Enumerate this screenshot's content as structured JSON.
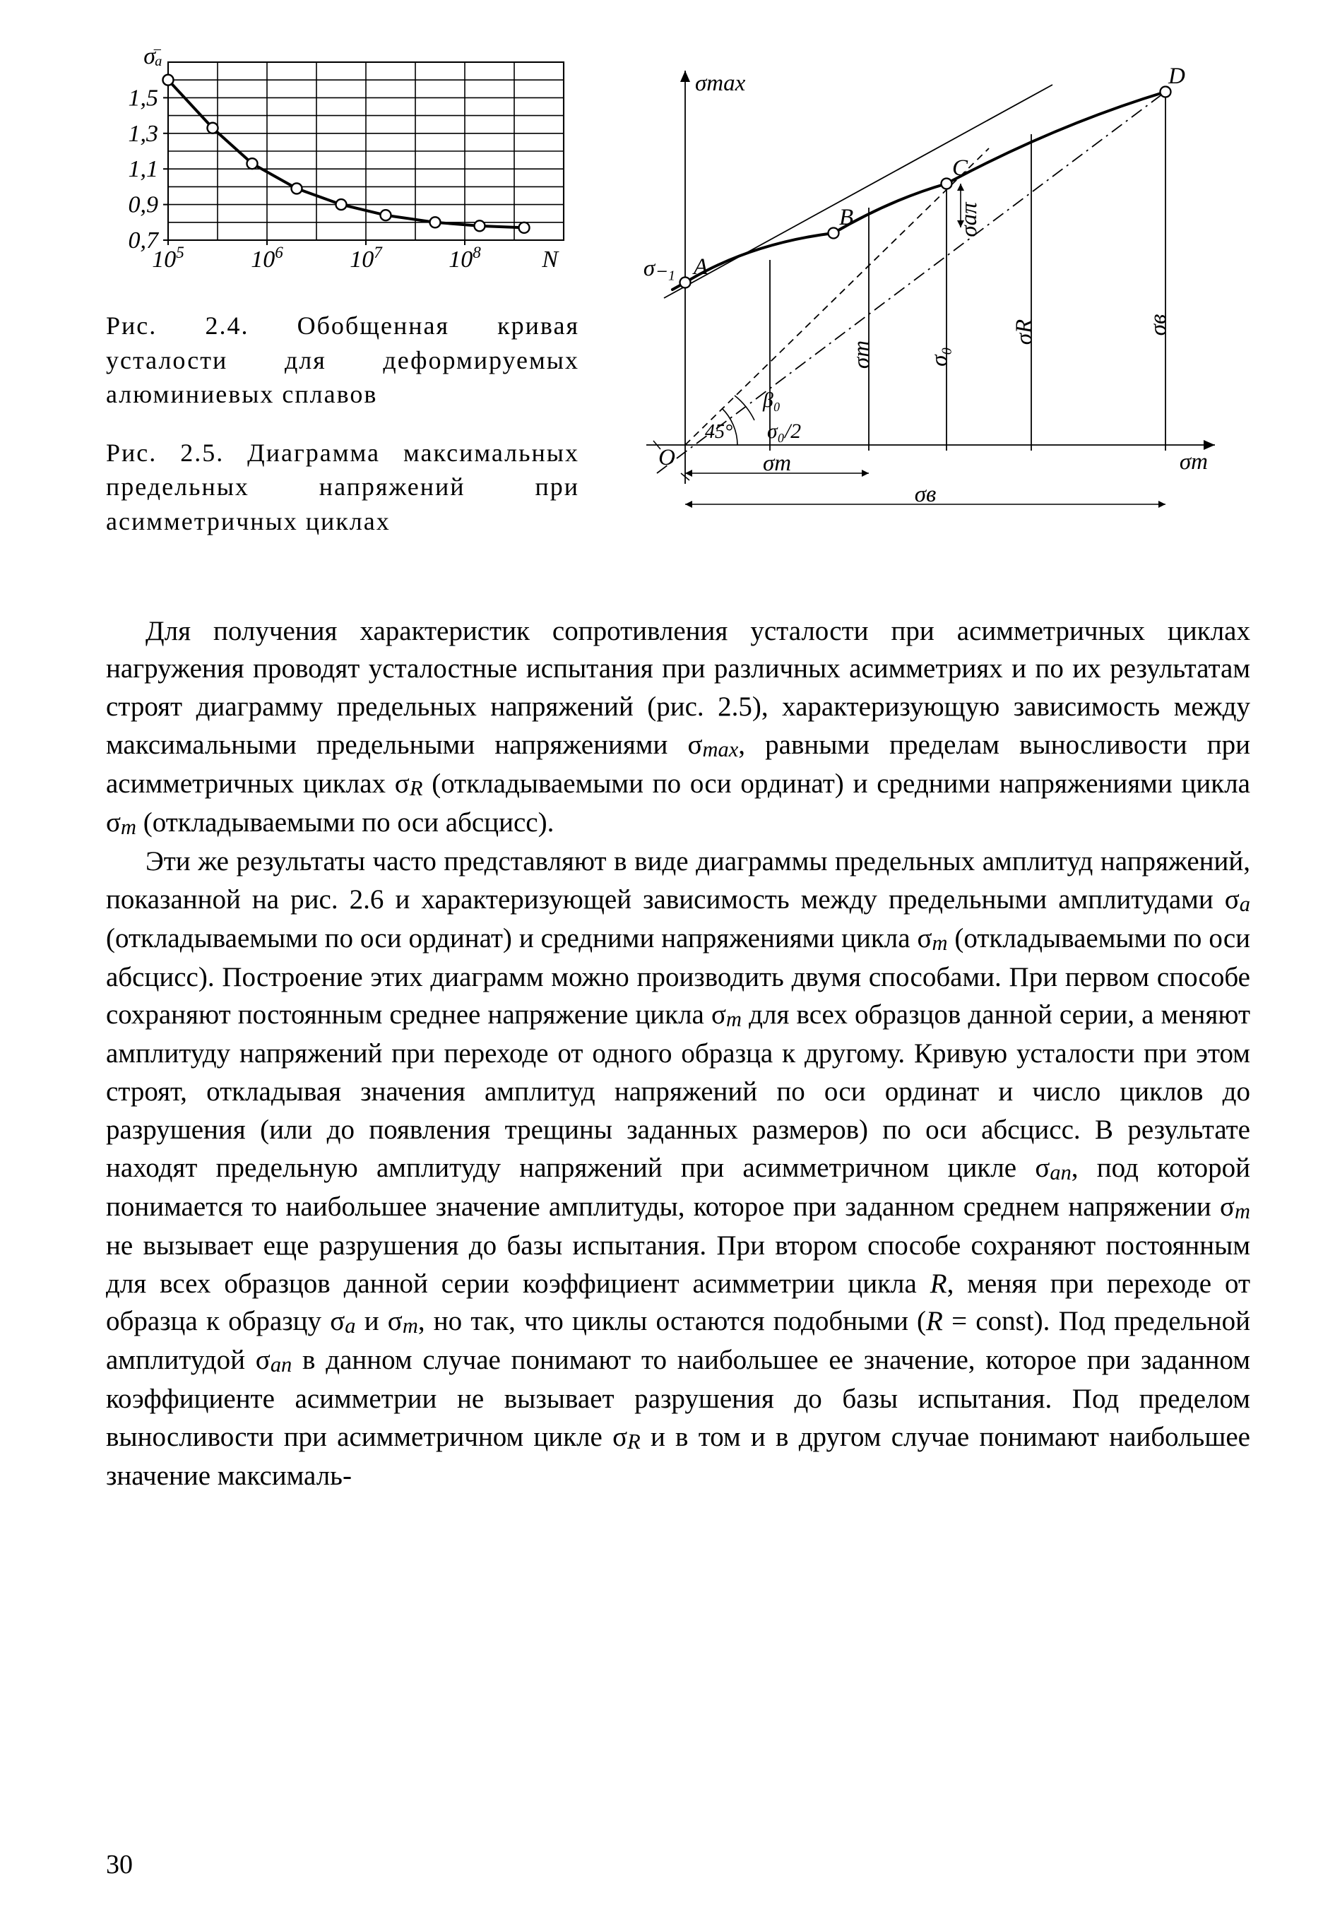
{
  "fig24": {
    "caption": "Рис. 2.4. Обобщенная кривая усталости для деформируемых алюминиевых сплавов",
    "y_axis_label": "σ̄ₐ",
    "x_axis_label": "N",
    "y_ticks": [
      "0,7",
      "0,9",
      "1,1",
      "1,3",
      "1,5"
    ],
    "x_ticks": [
      "10⁵",
      "10⁶",
      "10⁷",
      "10⁸"
    ],
    "points": [
      {
        "x_log": 5.0,
        "y": 1.6
      },
      {
        "x_log": 5.45,
        "y": 1.33
      },
      {
        "x_log": 5.85,
        "y": 1.13
      },
      {
        "x_log": 6.3,
        "y": 0.99
      },
      {
        "x_log": 6.75,
        "y": 0.9
      },
      {
        "x_log": 7.2,
        "y": 0.84
      },
      {
        "x_log": 7.7,
        "y": 0.8
      },
      {
        "x_log": 8.15,
        "y": 0.78
      },
      {
        "x_log": 8.6,
        "y": 0.77
      }
    ],
    "ylim_bottom": 0.7,
    "ylim_top": 1.7,
    "xlim_left": 5.0,
    "xlim_right": 9.0,
    "line_color": "#000",
    "line_width": 4.0,
    "grid_color": "#000",
    "grid_width": 1.6,
    "marker_radius": 7.5,
    "marker_stroke": "#000",
    "marker_fill": "#fff",
    "label_fontsize": 34
  },
  "fig25": {
    "caption": "Рис. 2.5. Диаграмма максимальных предельных напряжений при асимметричных циклах",
    "y_label": "σmax",
    "x_label_right": "σm",
    "label_sigma_minus1": "σ₋₁",
    "label_A": "A",
    "label_B": "B",
    "label_C": "C",
    "label_D": "D",
    "label_O": "O",
    "label_betaO": "β₀",
    "label_45": "45°",
    "label_sigma0over2": "σ₀/2",
    "label_sigma_m_small": "σm",
    "label_sigma_B_bottom": "σв",
    "label_sigma_ap": "σаπ",
    "label_sigma_m_vert": "σm",
    "label_sigma_0_vert": "σ₀",
    "label_sigma_R_vert": "σR",
    "label_sigma_B_vert": "σв",
    "line_color": "#000",
    "thin_width": 1.8,
    "thick_width": 4.0,
    "dash_pattern": "10 7",
    "dashdot_pattern": "18 7 3 7",
    "label_fontsize": 33
  },
  "paragraph1": "Для получения характеристик сопротивления усталости при асимметричных циклах нагружения проводят усталостные испытания при различных асимметриях и по их результатам строят диаграмму предельных напряжений (рис. 2.5), характеризующую зависимость между максимальными предельными напряжениями σmax, равными пределам выносливости при асимметричных циклах σR (откладываемыми по оси ординат) и средними напряжениями цикла σm (откладываемыми по оси абсцисс).",
  "paragraph2": "Эти же результаты часто представляют в виде диаграммы предельных амплитуд напряжений, показанной на рис. 2.6 и характеризующей зависимость между предельными амплитудами σa (откладываемыми по оси ординат) и средними напряжениями цикла σm (откладываемыми по оси абсцисс). Построение этих диаграмм можно производить двумя способами. При первом способе сохраняют постоянным среднее напряжение цикла σm для всех образцов данной серии, а меняют амплитуду напряжений при переходе от одного образца к другому. Кривую усталости при этом строят, откладывая значения амплитуд напряжений по оси ординат и число циклов до разрушения (или до появления трещины заданных размеров) по оси абсцисс. В результате находят предельную амплитуду напряжений при асимметричном цикле σaп, под которой понимается то наибольшее значение амплитуды, которое при заданном среднем напряжении σm не вызывает еще разрушения до базы испытания. При втором способе сохраняют постоянным для всех образцов данной серии коэффициент асимметрии цикла R, меняя при переходе от образца к образцу σa и σm, но так, что циклы остаются подобными (R = const). Под предельной амплитудой σaп в данном случае понимают то наибольшее ее значение, которое при заданном коэффициенте асимметрии не вызывает разрушения до базы испытания. Под пределом выносливости при асимметричном цикле σR и в том и в другом случае понимают наибольшее значение максималь-",
  "page_number": "30"
}
